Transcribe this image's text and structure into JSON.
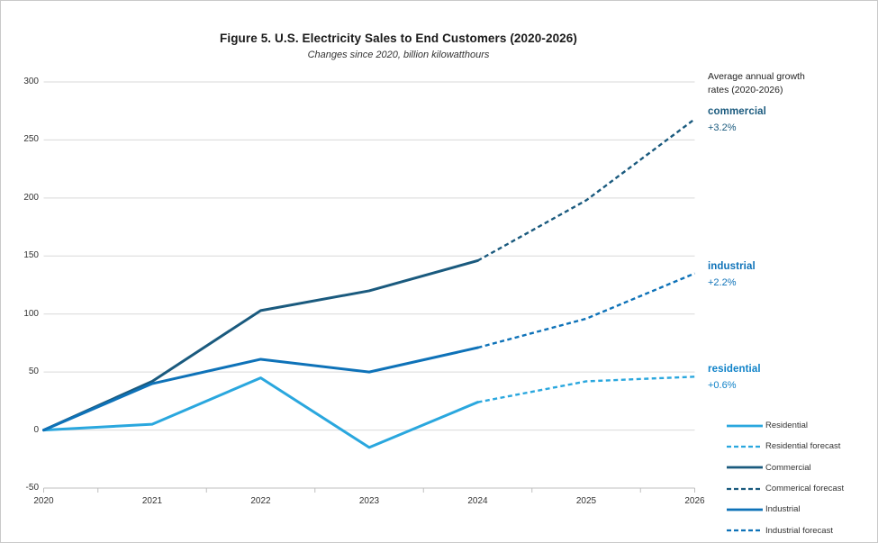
{
  "title": "Figure 5. U.S. Electricity Sales to End Customers (2020-2026)",
  "subtitle": "Changes since 2020, billion kilowatthours",
  "annotations": {
    "growth_note": "Average annual growth rates (2020-2026)",
    "labels": [
      {
        "name": "commercial",
        "rate": "+3.2%",
        "color": "#1a5a7e",
        "at_value": 268
      },
      {
        "name": "industrial",
        "rate": "+2.2%",
        "color": "#0e72b8",
        "at_value": 135
      },
      {
        "name": "residential",
        "rate": "+0.6%",
        "color": "#0f82c8",
        "at_value": 46
      }
    ]
  },
  "chart_data": {
    "type": "line",
    "title": "Figure 5. U.S. Electricity Sales to End Customers (2020-2026)",
    "subtitle": "Changes since 2020, billion kilowatthours",
    "x": [
      "2020",
      "2021",
      "2022",
      "2023",
      "2024",
      "2025",
      "2026"
    ],
    "ylim": [
      -50,
      300
    ],
    "yticks": [
      300,
      250,
      200,
      150,
      100,
      50,
      0,
      -50
    ],
    "grid": true,
    "legend_position": "bottom-right",
    "series": [
      {
        "name": "Residential",
        "color": "#2aa7de",
        "style": "solid",
        "values": [
          0,
          5,
          45,
          -15,
          24,
          null,
          null
        ]
      },
      {
        "name": "Residential forecast",
        "color": "#2aa7de",
        "style": "dashed",
        "values": [
          null,
          null,
          null,
          null,
          24,
          42,
          46
        ]
      },
      {
        "name": "Commercial",
        "color": "#1a5a7e",
        "style": "solid",
        "values": [
          0,
          42,
          103,
          120,
          146,
          null,
          null
        ]
      },
      {
        "name": "Commerical forecast",
        "color": "#1a5a7e",
        "style": "dashed",
        "values": [
          null,
          null,
          null,
          null,
          146,
          198,
          268
        ]
      },
      {
        "name": "Industrial",
        "color": "#0e72b8",
        "style": "solid",
        "values": [
          0,
          40,
          61,
          50,
          71,
          null,
          null
        ]
      },
      {
        "name": "Industrial forecast",
        "color": "#0e72b8",
        "style": "dashed",
        "values": [
          null,
          null,
          null,
          null,
          71,
          96,
          135
        ]
      }
    ],
    "colors": {
      "grid": "#d9d9d9",
      "axis": "#bfbfbf",
      "text": "#333333"
    }
  }
}
